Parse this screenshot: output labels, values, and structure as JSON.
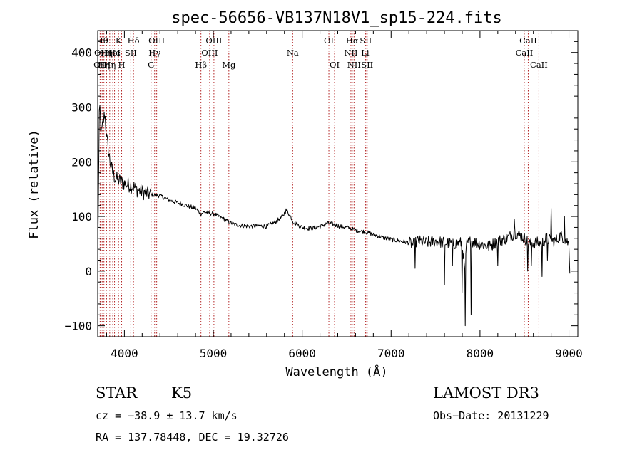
{
  "chart_data": {
    "type": "line",
    "title": "spec-56656-VB137N18V1_sp15-224.fits",
    "xlabel": "Wavelength (Å)",
    "ylabel": "Flux (relative)",
    "xlim": [
      3700,
      9100
    ],
    "ylim": [
      -120,
      440
    ],
    "x_ticks": [
      4000,
      5000,
      6000,
      7000,
      8000,
      9000
    ],
    "x_tick_labels": [
      "4000",
      "5000",
      "6000",
      "7000",
      "8000",
      "9000"
    ],
    "y_ticks": [
      -100,
      0,
      100,
      200,
      300,
      400
    ],
    "y_tick_labels": [
      "−100",
      "0",
      "100",
      "200",
      "300",
      "400"
    ],
    "spectrum": {
      "x": [
        3700,
        3720,
        3740,
        3760,
        3780,
        3800,
        3820,
        3840,
        3860,
        3880,
        3900,
        3950,
        4000,
        4050,
        4100,
        4150,
        4200,
        4300,
        4400,
        4500,
        4600,
        4700,
        4800,
        4860,
        4900,
        5000,
        5100,
        5170,
        5250,
        5400,
        5500,
        5600,
        5700,
        5780,
        5820,
        5870,
        5900,
        5950,
        6000,
        6100,
        6200,
        6300,
        6400,
        6500,
        6600,
        6700,
        6800,
        6900,
        7000,
        7100,
        7200,
        7250,
        7300,
        7400,
        7500,
        7600,
        7700,
        7800,
        7830,
        7850,
        7900,
        8000,
        8100,
        8200,
        8300,
        8400,
        8500,
        8560,
        8600,
        8700,
        8750,
        8800,
        8850,
        8900,
        8950,
        9000,
        9010
      ],
      "y": [
        20,
        310,
        250,
        270,
        290,
        245,
        220,
        200,
        185,
        175,
        170,
        165,
        160,
        158,
        155,
        148,
        145,
        140,
        138,
        130,
        125,
        120,
        115,
        105,
        108,
        105,
        97,
        90,
        85,
        82,
        83,
        82,
        90,
        100,
        112,
        100,
        90,
        85,
        80,
        78,
        82,
        88,
        83,
        80,
        75,
        72,
        67,
        62,
        58,
        55,
        52,
        48,
        55,
        52,
        55,
        52,
        50,
        52,
        -5,
        50,
        55,
        50,
        45,
        55,
        60,
        70,
        60,
        50,
        52,
        52,
        60,
        55,
        55,
        65,
        60,
        50,
        5
      ],
      "absorption_spikes": [
        {
          "x": 7270,
          "y": 5
        },
        {
          "x": 7600,
          "y": -25
        },
        {
          "x": 7690,
          "y": 10
        },
        {
          "x": 7800,
          "y": -40
        },
        {
          "x": 7835,
          "y": -100
        },
        {
          "x": 7900,
          "y": -80
        },
        {
          "x": 8200,
          "y": 10
        },
        {
          "x": 8540,
          "y": 0
        },
        {
          "x": 8580,
          "y": 10
        },
        {
          "x": 8700,
          "y": -10
        },
        {
          "x": 8760,
          "y": 20
        }
      ],
      "emission_spikes": [
        {
          "x": 8390,
          "y": 95
        },
        {
          "x": 8800,
          "y": 115
        },
        {
          "x": 8950,
          "y": 100
        }
      ]
    },
    "line_markers": [
      {
        "x": 3727,
        "label": "OII",
        "row": 3
      },
      {
        "x": 3734,
        "label": "OII",
        "row": 2
      },
      {
        "x": 3750,
        "label": "Hθ",
        "row": 1
      },
      {
        "x": 3770,
        "label": "Hη",
        "row": 3
      },
      {
        "x": 3800,
        "label": "Hη",
        "row": 2
      },
      {
        "x": 3835,
        "label": "Hη",
        "row": 3
      },
      {
        "x": 3869,
        "label": "HeI",
        "row": 2
      },
      {
        "x": 3889,
        "label": "He",
        "row": 2
      },
      {
        "x": 3934,
        "label": "K",
        "row": 1
      },
      {
        "x": 3969,
        "label": "H",
        "row": 3
      },
      {
        "x": 4072,
        "label": "SII",
        "row": 2
      },
      {
        "x": 4102,
        "label": "Hδ",
        "row": 1
      },
      {
        "x": 4300,
        "label": "G",
        "row": 3
      },
      {
        "x": 4340,
        "label": "Hγ",
        "row": 2
      },
      {
        "x": 4363,
        "label": "OIII",
        "row": 1
      },
      {
        "x": 4861,
        "label": "Hβ",
        "row": 3
      },
      {
        "x": 4959,
        "label": "OIII",
        "row": 2
      },
      {
        "x": 5007,
        "label": "OIII",
        "row": 1
      },
      {
        "x": 5175,
        "label": "Mg",
        "row": 3
      },
      {
        "x": 5893,
        "label": "Na",
        "row": 2
      },
      {
        "x": 6300,
        "label": "OI",
        "row": 1
      },
      {
        "x": 6364,
        "label": "OI",
        "row": 3
      },
      {
        "x": 6548,
        "label": "NII",
        "row": 2
      },
      {
        "x": 6563,
        "label": "Hα",
        "row": 1
      },
      {
        "x": 6583,
        "label": "NII",
        "row": 3
      },
      {
        "x": 6716,
        "label": "SII",
        "row": 1
      },
      {
        "x": 6731,
        "label": "SII",
        "row": 3
      },
      {
        "x": 6708,
        "label": "Li",
        "row": 2
      },
      {
        "x": 8498,
        "label": "CaII",
        "row": 2
      },
      {
        "x": 8542,
        "label": "CaII",
        "row": 1
      },
      {
        "x": 8662,
        "label": "CaII",
        "row": 3
      }
    ]
  },
  "info": {
    "class_label": "STAR",
    "subclass_label": "K5",
    "survey_label": "LAMOST DR3",
    "cz_text": "cz = −38.9 ± 13.7 km/s",
    "obs_date_text": "Obs−Date: 20131229",
    "coords_text": "RA = 137.78448, DEC =  19.32726"
  },
  "colors": {
    "marker": "#b22222",
    "spectrum": "#000000",
    "axis": "#000000"
  }
}
